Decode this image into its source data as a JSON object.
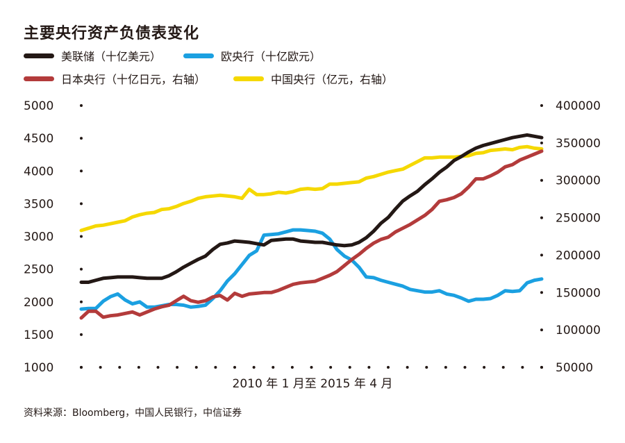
{
  "title": "主要央行资产负债表变化",
  "source": "资料来源：Bloomberg，中国人民银行，中信证券",
  "colors": {
    "fed": "#231815",
    "ecb": "#1ba0e1",
    "boj": "#b33b3b",
    "pboc": "#f5d800"
  },
  "chart_data": {
    "type": "line",
    "title": "主要央行资产负债表变化",
    "xlabel": "2010 年 1 月至 2015 年 4 月",
    "x": [
      "2010-01",
      "2010-02",
      "2010-03",
      "2010-04",
      "2010-05",
      "2010-06",
      "2010-07",
      "2010-08",
      "2010-09",
      "2010-10",
      "2010-11",
      "2010-12",
      "2011-01",
      "2011-02",
      "2011-03",
      "2011-04",
      "2011-05",
      "2011-06",
      "2011-07",
      "2011-08",
      "2011-09",
      "2011-10",
      "2011-11",
      "2011-12",
      "2012-01",
      "2012-02",
      "2012-03",
      "2012-04",
      "2012-05",
      "2012-06",
      "2012-07",
      "2012-08",
      "2012-09",
      "2012-10",
      "2012-11",
      "2012-12",
      "2013-01",
      "2013-02",
      "2013-03",
      "2013-04",
      "2013-05",
      "2013-06",
      "2013-07",
      "2013-08",
      "2013-09",
      "2013-10",
      "2013-11",
      "2013-12",
      "2014-01",
      "2014-02",
      "2014-03",
      "2014-04",
      "2014-05",
      "2014-06",
      "2014-07",
      "2014-08",
      "2014-09",
      "2014-10",
      "2014-11",
      "2014-12",
      "2015-01",
      "2015-02",
      "2015-03",
      "2015-04"
    ],
    "left_axis": {
      "ylim": [
        1000,
        5000
      ],
      "ticks": [
        1000,
        1500,
        2000,
        2500,
        3000,
        3500,
        4000,
        4500,
        5000
      ]
    },
    "right_axis": {
      "ylim": [
        50000,
        400000
      ],
      "ticks": [
        50000,
        100000,
        150000,
        200000,
        250000,
        300000,
        350000,
        400000
      ]
    },
    "series": [
      {
        "name": "美联储（十亿美元）",
        "axis": "left",
        "color": "#231815",
        "values": [
          2300,
          2300,
          2330,
          2360,
          2370,
          2380,
          2380,
          2380,
          2370,
          2360,
          2360,
          2360,
          2400,
          2460,
          2530,
          2590,
          2650,
          2700,
          2800,
          2880,
          2900,
          2930,
          2920,
          2910,
          2890,
          2870,
          2940,
          2950,
          2960,
          2960,
          2930,
          2920,
          2910,
          2910,
          2890,
          2870,
          2860,
          2870,
          2910,
          2980,
          3080,
          3200,
          3290,
          3420,
          3540,
          3620,
          3690,
          3790,
          3880,
          3980,
          4060,
          4160,
          4220,
          4290,
          4350,
          4390,
          4420,
          4450,
          4480,
          4510,
          4530,
          4550,
          4530,
          4510
        ]
      },
      {
        "name": "欧央行（十亿欧元）",
        "axis": "left",
        "color": "#1ba0e1",
        "values": [
          1890,
          1900,
          1900,
          2010,
          2080,
          2120,
          2030,
          1970,
          2000,
          1920,
          1920,
          1940,
          1960,
          1960,
          1950,
          1920,
          1930,
          1950,
          2050,
          2170,
          2320,
          2430,
          2570,
          2710,
          2780,
          3020,
          3030,
          3040,
          3070,
          3100,
          3100,
          3090,
          3080,
          3050,
          2960,
          2800,
          2700,
          2640,
          2530,
          2380,
          2370,
          2330,
          2300,
          2270,
          2240,
          2190,
          2170,
          2150,
          2150,
          2170,
          2120,
          2100,
          2060,
          2010,
          2040,
          2040,
          2050,
          2100,
          2170,
          2160,
          2170,
          2290,
          2330,
          2350
        ]
      },
      {
        "name": "日本央行（十亿日元，右轴）",
        "axis": "right",
        "color": "#b33b3b",
        "values": [
          116000,
          125000,
          125000,
          117000,
          119000,
          120000,
          122000,
          124000,
          120000,
          124000,
          128000,
          131000,
          133000,
          139000,
          145000,
          139000,
          137000,
          139000,
          144000,
          146000,
          140000,
          149000,
          145000,
          148000,
          149000,
          150000,
          150000,
          153000,
          157000,
          161000,
          163000,
          164000,
          165000,
          169000,
          173000,
          178000,
          186000,
          194000,
          201000,
          209000,
          216000,
          221000,
          224000,
          231000,
          236000,
          241000,
          247000,
          253000,
          261000,
          272000,
          274000,
          277000,
          282000,
          291000,
          302000,
          302000,
          306000,
          311000,
          318000,
          321000,
          327000,
          331000,
          335000,
          339000
        ]
      },
      {
        "name": "中国央行（亿元，右轴）",
        "axis": "right",
        "color": "#f5d800",
        "values": [
          233000,
          236000,
          239000,
          240000,
          242000,
          244000,
          246000,
          251000,
          254000,
          256000,
          257000,
          261000,
          262000,
          265000,
          269000,
          272000,
          276000,
          278000,
          279000,
          280000,
          279000,
          278000,
          276000,
          288000,
          281000,
          281000,
          282000,
          284000,
          283000,
          285000,
          288000,
          289000,
          288000,
          289000,
          295000,
          295000,
          296000,
          297000,
          298000,
          303000,
          305000,
          308000,
          311000,
          313000,
          315000,
          320000,
          325000,
          330000,
          330000,
          331000,
          331000,
          331000,
          332000,
          333000,
          336000,
          337000,
          340000,
          341000,
          342000,
          341000,
          344000,
          345000,
          343000,
          342000
        ]
      }
    ]
  }
}
